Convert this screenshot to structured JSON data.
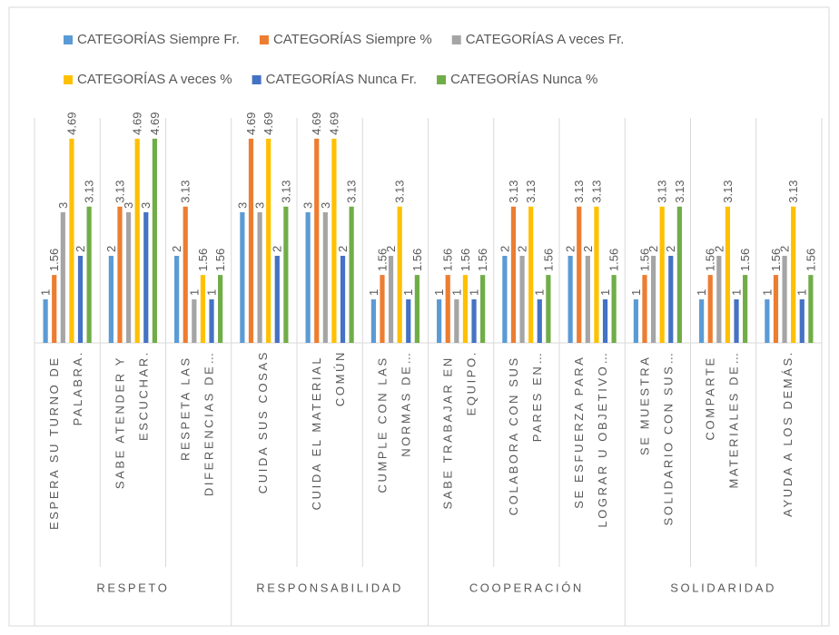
{
  "chart_data": {
    "type": "bar",
    "categories": [
      "ESPERA SU TURNO DE PALABRA.",
      "SABE ATENDER Y ESCUCHAR.",
      "RESPETA LAS DIFERENCIAS DE…",
      "CUIDA SUS COSAS",
      "CUIDA EL MATERIAL COMÚN",
      "CUMPLE CON LAS NORMAS DE…",
      "SABE TRABAJAR EN EQUIPO.",
      "COLABORA CON SUS PARES EN…",
      "SE ESFUERZA PARA LOGRAR U OBJETIVO…",
      "SE MUESTRA SOLIDARIO CON SUS…",
      "COMPARTE MATERIALES DE…",
      "AYUDA A LOS DEMÁS."
    ],
    "groups": [
      "RESPETO",
      "RESPONSABILIDAD",
      "COOPERACIÓN",
      "SOLIDARIDAD"
    ],
    "series": [
      {
        "name": "CATEGORÍAS Siempre Fr.",
        "color": "#5b9bd5",
        "values": [
          1,
          2,
          2,
          3,
          3,
          1,
          1,
          2,
          2,
          1,
          1,
          1
        ]
      },
      {
        "name": "CATEGORÍAS Siempre %",
        "color": "#ed7d31",
        "values": [
          1.56,
          3.13,
          3.13,
          4.69,
          4.69,
          1.56,
          1.56,
          3.13,
          3.13,
          1.56,
          1.56,
          1.56
        ]
      },
      {
        "name": "CATEGORÍAS A veces Fr.",
        "color": "#a5a5a5",
        "values": [
          3,
          3,
          1,
          3,
          3,
          2,
          1,
          2,
          2,
          2,
          2,
          2
        ]
      },
      {
        "name": "CATEGORÍAS A veces %",
        "color": "#ffc000",
        "values": [
          4.69,
          4.69,
          1.56,
          4.69,
          4.69,
          3.13,
          1.56,
          3.13,
          3.13,
          3.13,
          3.13,
          3.13
        ]
      },
      {
        "name": "CATEGORÍAS Nunca Fr.",
        "color": "#4472c4",
        "values": [
          2,
          3,
          1,
          2,
          2,
          1,
          1,
          1,
          1,
          2,
          1,
          1
        ]
      },
      {
        "name": "CATEGORÍAS Nunca %",
        "color": "#70ad47",
        "values": [
          3.13,
          4.69,
          1.56,
          3.13,
          3.13,
          1.56,
          1.56,
          1.56,
          1.56,
          3.13,
          1.56,
          1.56
        ]
      }
    ]
  }
}
